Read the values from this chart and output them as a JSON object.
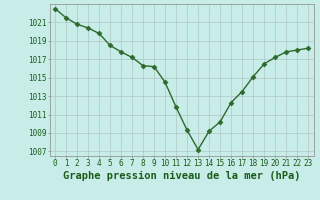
{
  "x": [
    0,
    1,
    2,
    3,
    4,
    5,
    6,
    7,
    8,
    9,
    10,
    11,
    12,
    13,
    14,
    15,
    16,
    17,
    18,
    19,
    20,
    21,
    22,
    23
  ],
  "y": [
    1022.5,
    1021.5,
    1020.8,
    1020.4,
    1019.8,
    1018.5,
    1017.8,
    1017.2,
    1016.3,
    1016.2,
    1014.5,
    1011.8,
    1009.3,
    1007.2,
    1009.2,
    1010.2,
    1012.3,
    1013.5,
    1015.1,
    1016.5,
    1017.2,
    1017.8,
    1018.0,
    1018.2
  ],
  "line_color": "#2d6a2d",
  "marker": "D",
  "marker_size": 2.5,
  "bg_color": "#c8ece8",
  "grid_color": "#b0c8c4",
  "text_color": "#1a5c1a",
  "xlabel": "Graphe pression niveau de la mer (hPa)",
  "ylim": [
    1006.5,
    1023.0
  ],
  "yticks": [
    1007,
    1009,
    1011,
    1013,
    1015,
    1017,
    1019,
    1021
  ],
  "xticks": [
    0,
    1,
    2,
    3,
    4,
    5,
    6,
    7,
    8,
    9,
    10,
    11,
    12,
    13,
    14,
    15,
    16,
    17,
    18,
    19,
    20,
    21,
    22,
    23
  ],
  "tick_fontsize": 5.5,
  "xlabel_fontsize": 7.5,
  "linewidth": 1.0
}
